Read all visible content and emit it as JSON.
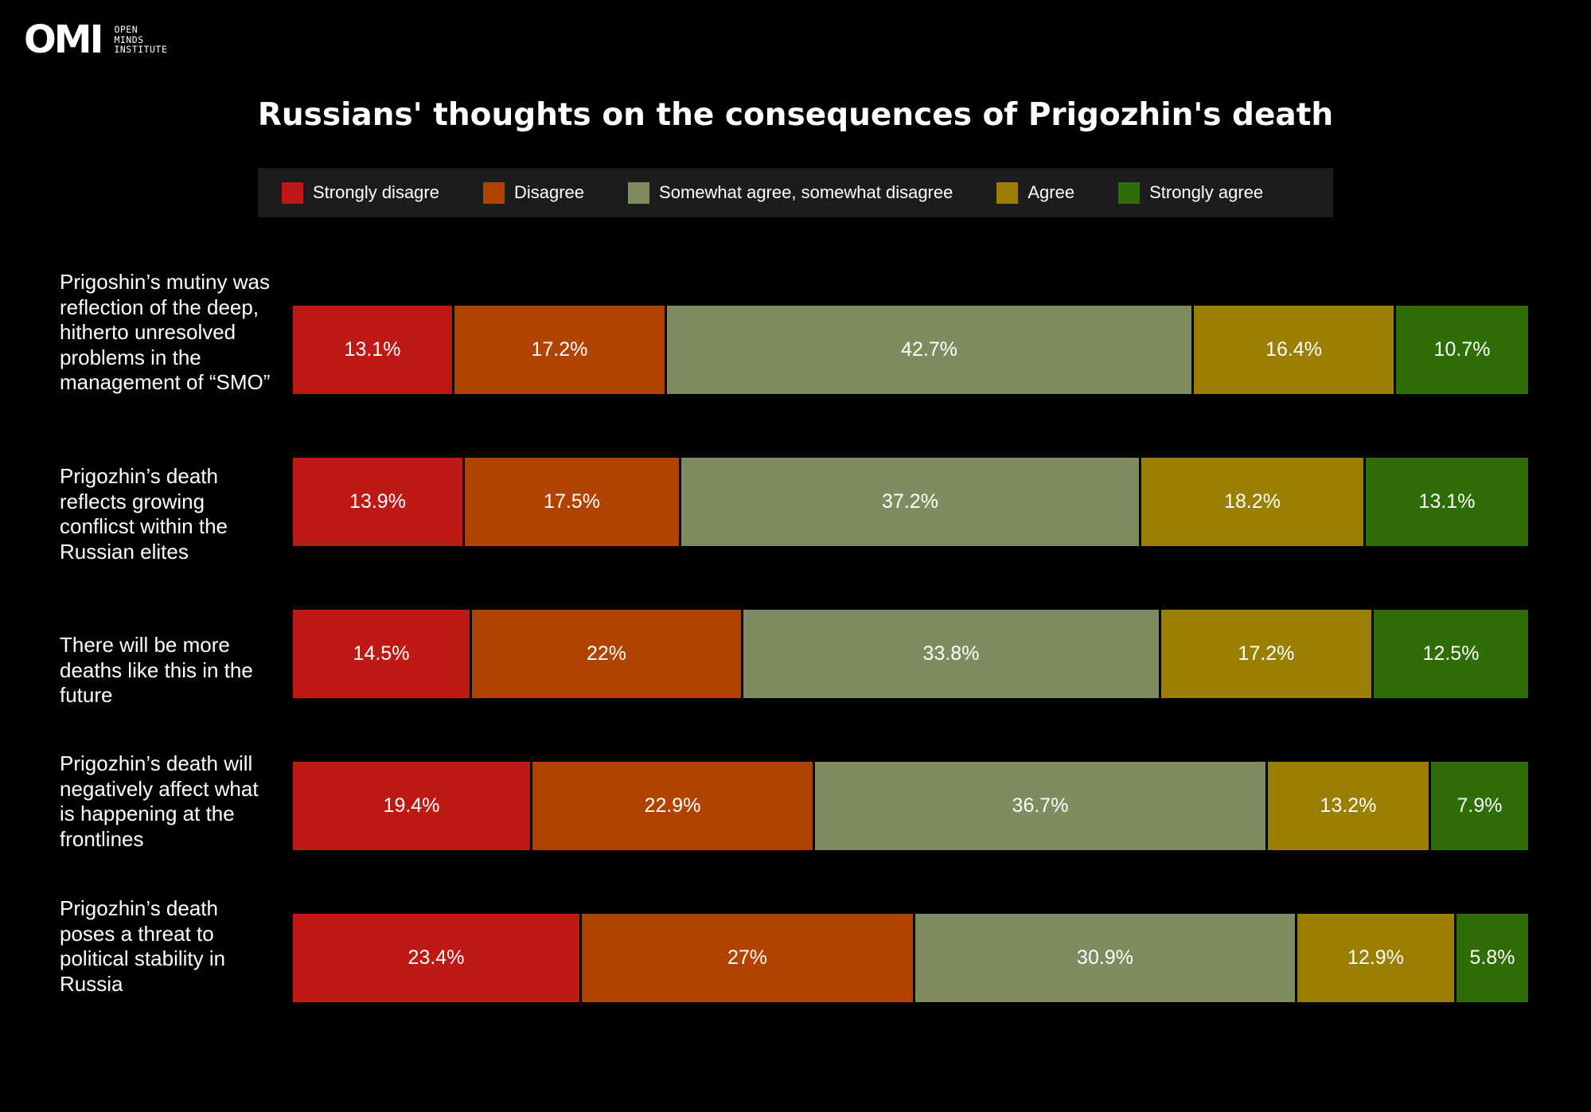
{
  "logo": {
    "mark": "OMI",
    "lines": [
      "OPEN",
      "MINDS",
      "INSTITUTE"
    ]
  },
  "colors": {
    "strongly_disagree": "#be1914",
    "disagree": "#b14300",
    "neutral": "#7f8c5f",
    "agree": "#9a7f00",
    "strongly_agree": "#2f6e06",
    "background": "#000000",
    "legend_background": "#1c1c1e"
  },
  "chart_data": {
    "type": "bar",
    "orientation": "horizontal",
    "stacked": true,
    "normalized": true,
    "title": "Russians' thoughts on the consequences of Prigozhin's death",
    "legend_position": "top",
    "categories": [
      "Prigoshin’s mutiny was reflection of the deep, hitherto unresolved problems in the management of “SMO”",
      "Prigozhin’s death reflects growing conflicst within the Russian elites",
      "There will be more deaths like this in the future",
      "Prigozhin’s death will negatively affect what is happening at the frontlines",
      "Prigozhin’s death poses a threat to political stability in Russia"
    ],
    "series": [
      {
        "name": "Strongly disagre",
        "color": "#be1914",
        "values": [
          13.1,
          13.9,
          14.5,
          19.4,
          23.4
        ],
        "labels": [
          "13.1%",
          "13.9%",
          "14.5%",
          "19.4%",
          "23.4%"
        ]
      },
      {
        "name": "Disagree",
        "color": "#b14300",
        "values": [
          17.2,
          17.5,
          22,
          22.9,
          27
        ],
        "labels": [
          "17.2%",
          "17.5%",
          "22%",
          "22.9%",
          "27%"
        ]
      },
      {
        "name": "Somewhat agree, somewhat disagree",
        "color": "#7f8c5f",
        "values": [
          42.7,
          37.2,
          33.8,
          36.7,
          30.9
        ],
        "labels": [
          "42.7%",
          "37.2%",
          "33.8%",
          "36.7%",
          "30.9%"
        ]
      },
      {
        "name": "Agree",
        "color": "#9a7f00",
        "values": [
          16.4,
          18.2,
          17.2,
          13.2,
          12.9
        ],
        "labels": [
          "16.4%",
          "18.2%",
          "17.2%",
          "13.2%",
          "12.9%"
        ]
      },
      {
        "name": "Strongly agree",
        "color": "#2f6e06",
        "values": [
          10.7,
          13.1,
          12.5,
          7.9,
          5.8
        ],
        "labels": [
          "10.7%",
          "13.1%",
          "12.5%",
          "7.9%",
          "5.8%"
        ]
      }
    ]
  }
}
